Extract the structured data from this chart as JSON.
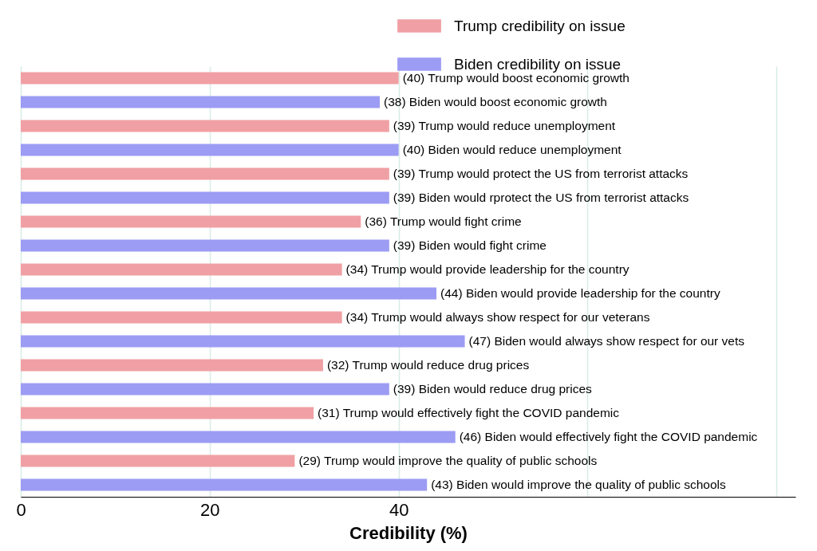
{
  "chart_data": {
    "type": "bar",
    "orientation": "horizontal",
    "xlabel": "Credibility (%)",
    "categories": [
      "Trump would boost economic growth",
      "Biden would boost economic growth",
      "Trump would reduce unemployment",
      "Biden would reduce unemployment",
      "Trump would protect the US from terrorist attacks",
      "Biden would rprotect the US from terrorist attacks",
      "Trump would fight crime",
      "Biden would fight crime",
      "Trump would provide leadership for the country",
      "Biden would provide leadership for the country",
      "Trump would always show respect for our veterans",
      "Biden would always show respect for our vets",
      "Trump would reduce drug prices",
      "Biden would reduce drug prices",
      "Trump would effectively fight the COVID pandemic",
      "Biden would effectively fight the COVID pandemic",
      "Trump would improve the quality of public schools",
      "Biden would improve the quality of public schools"
    ],
    "series": [
      {
        "name": "Trump credibility on issue",
        "color": "#f0a0a4",
        "values": [
          40,
          null,
          39,
          null,
          39,
          null,
          36,
          null,
          34,
          null,
          34,
          null,
          32,
          null,
          31,
          null,
          29,
          null
        ],
        "value_labels": [
          "(40)",
          null,
          "(39)",
          null,
          "(39)",
          null,
          "(36)",
          null,
          "(34)",
          null,
          "(34)",
          null,
          "(32)",
          null,
          "(31)",
          null,
          "(29)",
          null
        ]
      },
      {
        "name": "Biden credibility on issue",
        "color": "#9c9cf4",
        "values": [
          null,
          38,
          null,
          40,
          null,
          39,
          null,
          39,
          null,
          44,
          null,
          47,
          null,
          39,
          null,
          46,
          null,
          43
        ],
        "value_labels": [
          null,
          "(38)",
          null,
          "(40)",
          null,
          "(39)",
          null,
          "(39)",
          null,
          "(44)",
          null,
          "(47)",
          null,
          "(39)",
          null,
          "(46)",
          null,
          "(43)"
        ]
      }
    ],
    "xlim": [
      0,
      82
    ],
    "xticks": [
      0,
      20,
      40,
      {
        "value": 60,
        "label": null
      },
      {
        "value": 80,
        "label": null
      }
    ],
    "grid": "x",
    "legend": "top right",
    "tick_labels": "x"
  }
}
